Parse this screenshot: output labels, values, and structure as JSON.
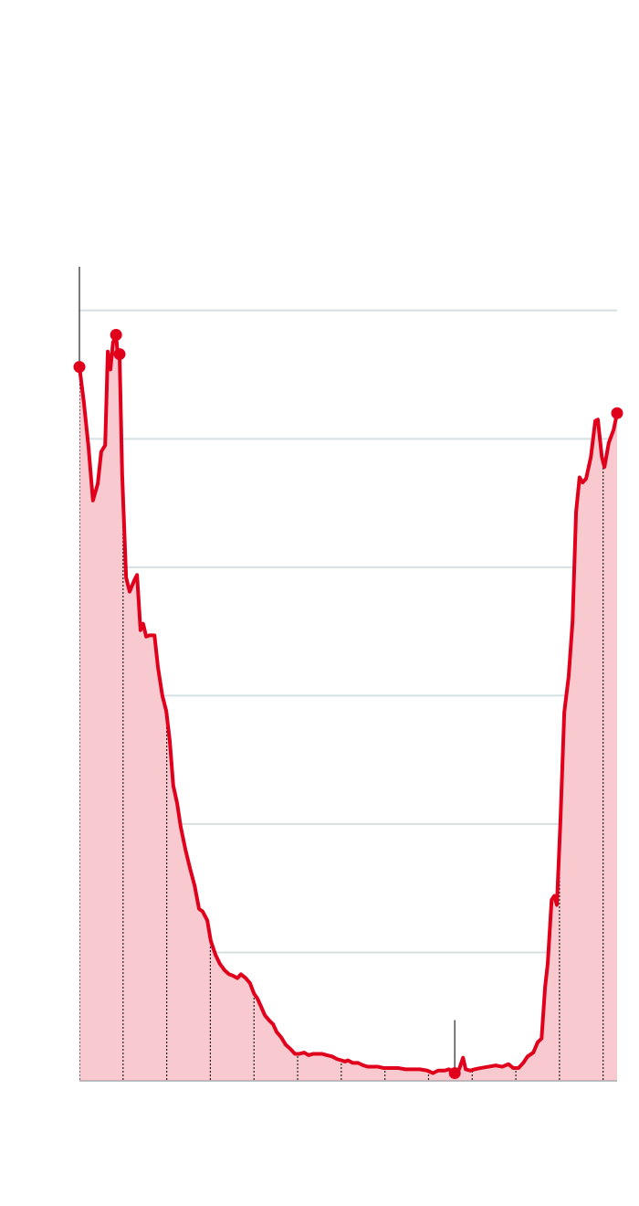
{
  "chart_data": {
    "type": "area",
    "xlim": [
      0,
      123.2
    ],
    "xticks": [
      0,
      10,
      20,
      30,
      40,
      50,
      60,
      70,
      80,
      90,
      100,
      110,
      120
    ],
    "ylim": [
      0,
      634
    ],
    "yticks": [
      0,
      100,
      200,
      300,
      400,
      500,
      600
    ],
    "grid": true,
    "line_color": "#e0001b",
    "fill_color": "#f8c9ce",
    "grid_color": "#d5e0e3",
    "highlighted_points": [
      0,
      10,
      12,
      86,
      124
    ],
    "x": [
      0,
      1.0,
      2.1,
      3.1,
      4.2,
      5.0,
      5.9,
      6.5,
      7.1,
      7.7,
      8.4,
      8.8,
      9.2,
      9.8,
      10.7,
      11.5,
      12.6,
      13.2,
      14.0,
      14.6,
      15.3,
      16.1,
      17.2,
      18.0,
      19.0,
      19.9,
      20.7,
      21.5,
      22.4,
      23.2,
      24.3,
      25.3,
      26.4,
      27.4,
      28.2,
      29.3,
      30.1,
      31.2,
      32.2,
      33.3,
      34.3,
      35.1,
      36.2,
      37.0,
      38.1,
      39.1,
      40.0,
      40.8,
      41.6,
      42.5,
      43.5,
      44.4,
      45.2,
      46.2,
      47.3,
      48.3,
      49.4,
      50.4,
      51.5,
      52.5,
      53.6,
      54.6,
      55.6,
      56.7,
      57.9,
      59.0,
      60.0,
      60.9,
      61.5,
      62.6,
      63.8,
      65.1,
      66.1,
      67.2,
      68.4,
      69.7,
      71.3,
      73.0,
      74.7,
      76.4,
      78.0,
      79.7,
      81.0,
      82.2,
      83.7,
      84.7,
      86.0,
      87.0,
      87.9,
      88.5,
      89.5,
      90.6,
      92.0,
      93.7,
      95.4,
      96.9,
      98.3,
      99.4,
      100.6,
      101.7,
      102.7,
      104.0,
      105.0,
      105.9,
      106.7,
      107.3,
      108.2,
      108.8,
      109.4,
      110.2,
      111.1,
      112.1,
      113.0,
      113.8,
      114.6,
      115.3,
      116.1,
      117.2,
      118.2,
      118.8,
      119.7,
      120.3,
      121.3,
      122.4,
      123.2
    ],
    "values": [
      556,
      529,
      493,
      452,
      465,
      490,
      495,
      568,
      554,
      575,
      581,
      564,
      566,
      472,
      392,
      381,
      390,
      394,
      351,
      356,
      346,
      347,
      347,
      322,
      300,
      288,
      265,
      230,
      216,
      198,
      180,
      166,
      152,
      134,
      132,
      125,
      109,
      98,
      91,
      86,
      83,
      82,
      80,
      83,
      80,
      76,
      68,
      64,
      58,
      51,
      47,
      44,
      38,
      34,
      28,
      25,
      21,
      21,
      22,
      20,
      21,
      21,
      21,
      20,
      19,
      17,
      16,
      15,
      16,
      14,
      14,
      12,
      11,
      11,
      11,
      10,
      10,
      10,
      9,
      9,
      9,
      8,
      6,
      8,
      8,
      9,
      6,
      9,
      18,
      9,
      8,
      9,
      10,
      11,
      12,
      11,
      13,
      10,
      10,
      14,
      19,
      22,
      30,
      33,
      73,
      91,
      141,
      144,
      137,
      201,
      287,
      315,
      358,
      443,
      470,
      466,
      469,
      486,
      514,
      515,
      486,
      478,
      497,
      507,
      520
    ]
  }
}
